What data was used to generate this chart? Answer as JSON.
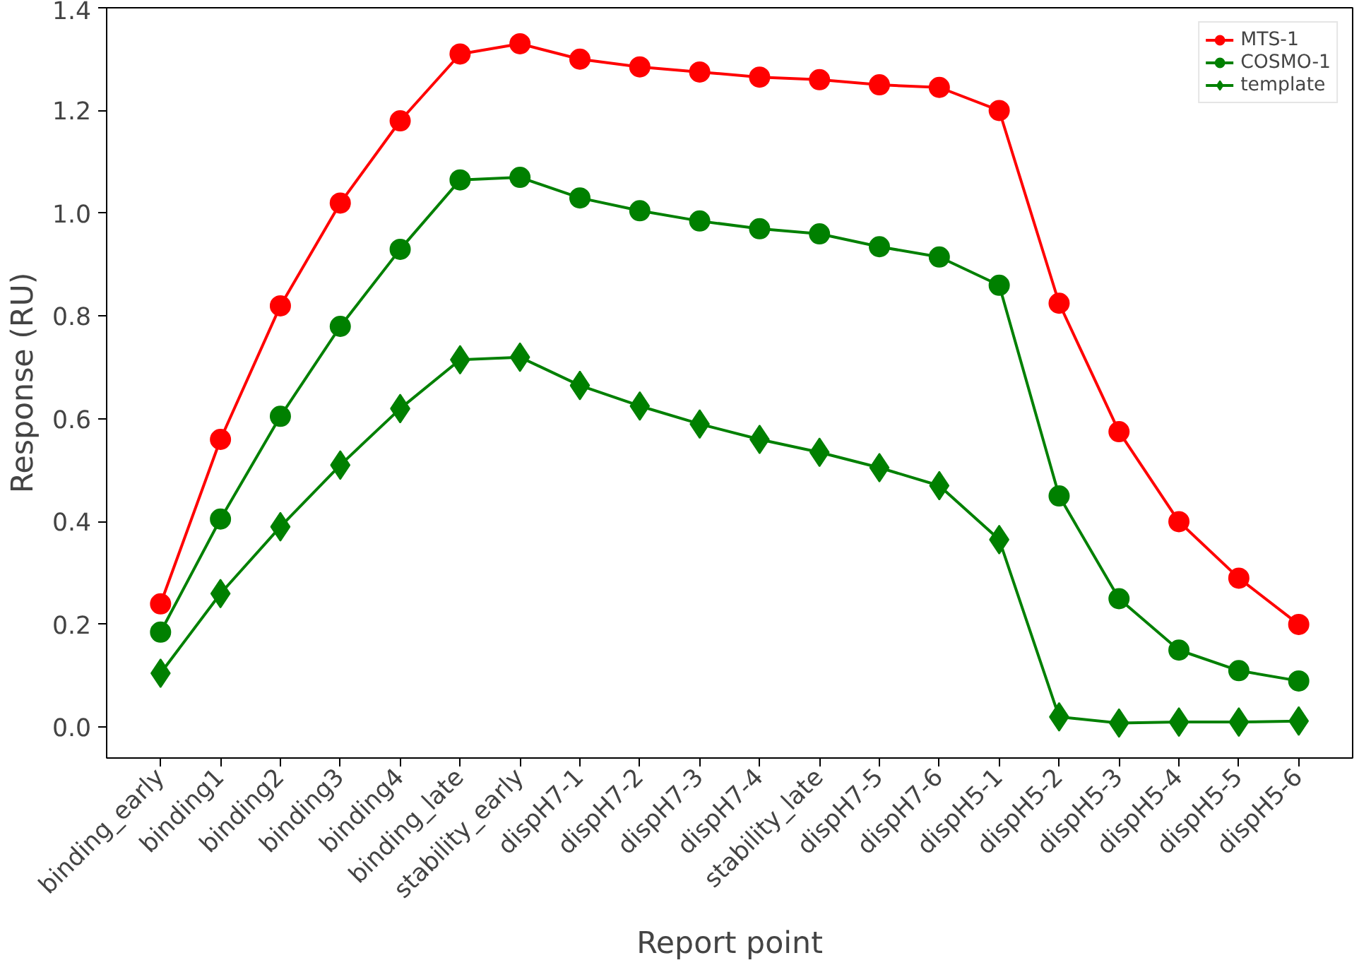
{
  "chart_data": {
    "type": "line",
    "xlabel": "Report point",
    "ylabel": "Response (RU)",
    "categories": [
      "binding_early",
      "binding1",
      "binding2",
      "binding3",
      "binding4",
      "binding_late",
      "stability_early",
      "dispH7-1",
      "dispH7-2",
      "dispH7-3",
      "dispH7-4",
      "stability_late",
      "dispH7-5",
      "dispH7-6",
      "dispH5-1",
      "dispH5-2",
      "dispH5-3",
      "dispH5-4",
      "dispH5-5",
      "dispH5-6"
    ],
    "series": [
      {
        "name": "MTS-1",
        "color": "#ff0000",
        "marker": "circle",
        "values": [
          0.24,
          0.56,
          0.82,
          1.02,
          1.18,
          1.31,
          1.33,
          1.3,
          1.285,
          1.275,
          1.265,
          1.26,
          1.25,
          1.245,
          1.2,
          0.825,
          0.575,
          0.4,
          0.29,
          0.2
        ]
      },
      {
        "name": "COSMO-1",
        "color": "#008000",
        "marker": "circle",
        "values": [
          0.185,
          0.405,
          0.605,
          0.78,
          0.93,
          1.065,
          1.07,
          1.03,
          1.005,
          0.985,
          0.97,
          0.96,
          0.935,
          0.915,
          0.86,
          0.45,
          0.25,
          0.15,
          0.11,
          0.09
        ]
      },
      {
        "name": "template",
        "color": "#008000",
        "marker": "diamond",
        "values": [
          0.105,
          0.26,
          0.39,
          0.51,
          0.62,
          0.715,
          0.72,
          0.665,
          0.625,
          0.59,
          0.56,
          0.535,
          0.505,
          0.47,
          0.365,
          0.02,
          0.008,
          0.01,
          0.01,
          0.012
        ]
      }
    ],
    "ylim": [
      -0.06,
      1.4
    ],
    "yticks": [
      {
        "value": 0,
        "label": "0.0"
      },
      0.2,
      0.4,
      0.6,
      0.8,
      {
        "value": 1,
        "label": "1.0"
      },
      1.2,
      1.4
    ],
    "grid": false,
    "legend": "top right",
    "line_style": "solid"
  }
}
